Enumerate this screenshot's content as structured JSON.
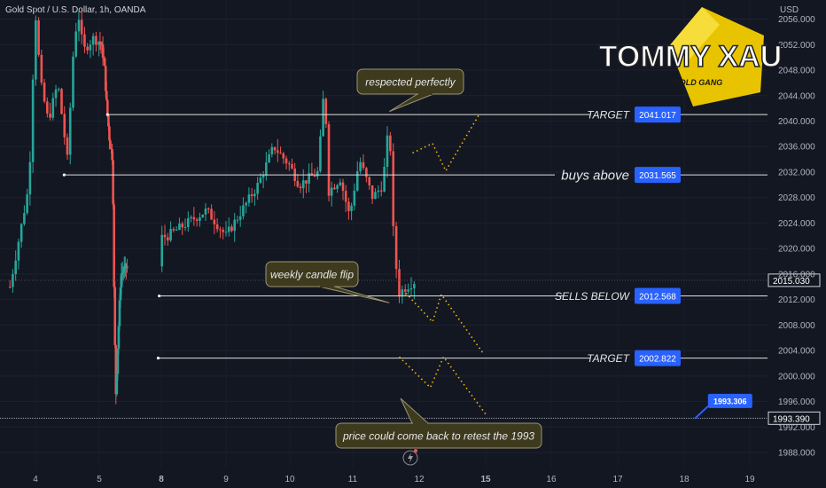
{
  "header": {
    "symbol_title": "Gold Spot / U.S. Dollar, 1h, OANDA",
    "currency": "USD"
  },
  "logo": {
    "brand": "TOMMY XAU",
    "tagline": "#GOLD GANG"
  },
  "colors": {
    "background": "#131722",
    "up_candle": "#26a69a",
    "down_candle": "#ef5350",
    "level_line": "#e0e0e0",
    "projection": "#f0b90b",
    "price_tag": "#2962ff",
    "callout_bg": "#3d3a1e"
  },
  "chart_data": {
    "type": "candlestick",
    "price_axis": {
      "ticks": [
        1988,
        1992,
        1996,
        2000,
        2004,
        2008,
        2012,
        2016,
        2020,
        2024,
        2028,
        2032,
        2036,
        2040,
        2044,
        2048,
        2052,
        2056
      ],
      "tick_labels": [
        "1988.000",
        "1992.000",
        "1996.000",
        "2000.000",
        "2004.000",
        "2008.000",
        "2012.000",
        "2016.000",
        "2020.000",
        "2024.000",
        "2028.000",
        "2032.000",
        "2036.000",
        "2040.000",
        "2044.000",
        "2048.000",
        "2052.000",
        "2056.000"
      ],
      "range": [
        1985.5,
        2059.0
      ]
    },
    "time_axis": {
      "ticks": [
        4,
        5,
        8,
        9,
        10,
        11,
        12,
        15,
        16,
        17,
        18,
        19
      ],
      "tick_labels": [
        "4",
        "5",
        "8",
        "9",
        "10",
        "11",
        "12",
        "15",
        "16",
        "17",
        "18",
        "19"
      ],
      "bold": [
        "8",
        "15"
      ]
    },
    "current_price": "2015.030",
    "horizontal_line_price": "1993.390",
    "levels": [
      {
        "name": "TARGET",
        "price": 2041.017,
        "price_label": "2041.017",
        "x_start_day": 5.4,
        "label_size": "small"
      },
      {
        "name": "buys above",
        "price": 2031.565,
        "price_label": "2031.565",
        "x_start_day": 4.45,
        "label_size": "large"
      },
      {
        "name": "SELLS BELOW",
        "price": 2012.568,
        "price_label": "2012.568",
        "x_start_day": 7.9,
        "label_size": "small"
      },
      {
        "name": "TARGET",
        "price": 2002.822,
        "price_label": "2002.822",
        "x_start_day": 7.85,
        "label_size": "small"
      }
    ],
    "marker": {
      "price_label": "1993.306",
      "price": 1993.306,
      "day": 18.2
    },
    "annotations": [
      {
        "text": "respected perfectly",
        "pointer_day": 11.55,
        "pointer_price": 2041.5
      },
      {
        "text": "weekly candle flip",
        "pointer_day": 11.55,
        "pointer_price": 2011.5
      },
      {
        "text": "price could come back to retest the 1993",
        "pointer_day": 11.72,
        "pointer_price": 1996.5
      }
    ],
    "projections": [
      [
        [
          11.9,
          2035.0
        ],
        [
          12.6,
          2036.5
        ],
        [
          13.2,
          2032.2
        ],
        [
          14.7,
          2041.0
        ]
      ],
      [
        [
          11.8,
          2013.0
        ],
        [
          12.6,
          2008.5
        ],
        [
          13.0,
          2012.8
        ],
        [
          14.9,
          2003.5
        ]
      ],
      [
        [
          11.7,
          2003.0
        ],
        [
          12.5,
          1998.2
        ],
        [
          13.1,
          2003.0
        ],
        [
          15.0,
          1994.0
        ]
      ]
    ]
  }
}
